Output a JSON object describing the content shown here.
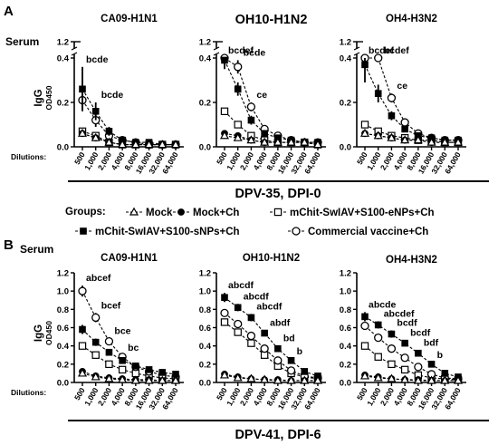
{
  "panel_a": {
    "letter": "A",
    "serum_label": "Serum",
    "section_label": "DPV-35, DPI-0",
    "dilutions_label": "Dilutions:"
  },
  "panel_b": {
    "letter": "B",
    "serum_label": "Serum",
    "section_label": "DPV-41, DPI-6",
    "dilutions_label": "Dilutions:"
  },
  "legend": {
    "title": "Groups:",
    "items": [
      {
        "label": "Mock",
        "marker": "triangle-open",
        "line": "dashed"
      },
      {
        "label": "Mock+Ch",
        "marker": "circle-filled",
        "line": "dashed"
      },
      {
        "label": "mChit-SwIAV+S100-eNPs+Ch",
        "marker": "square-open",
        "line": "dashed"
      },
      {
        "label": "mChit-SwIAV+S100-sNPs+Ch",
        "marker": "square-filled",
        "line": "dashed"
      },
      {
        "label": "Commercial vaccine+Ch",
        "marker": "circle-open",
        "line": "dashed"
      }
    ]
  },
  "colors": {
    "ink": "#000000",
    "background": "#ffffff"
  },
  "chart_data": [
    {
      "type": "line",
      "id": "a1",
      "title": "CA09-H1N1",
      "ylabel": "IgG",
      "ylabel_sub": "OD450",
      "categories": [
        "500",
        "1,000",
        "2,000",
        "4,000",
        "8,000",
        "16,000",
        "32,000",
        "64,000"
      ],
      "yticks": [
        "0.0",
        "0.2",
        "0.4",
        "1.2"
      ],
      "y_axis_break": true,
      "series": [
        {
          "name": "Mock",
          "values": [
            0.06,
            0.04,
            0.02,
            0.01,
            0.01,
            0.01,
            0.01,
            0.01
          ]
        },
        {
          "name": "Mock+Ch",
          "values": [
            0.06,
            0.04,
            0.02,
            0.01,
            0.01,
            0.01,
            0.01,
            0.01
          ]
        },
        {
          "name": "mChit-SwIAV+S100-eNPs+Ch",
          "values": [
            0.07,
            0.05,
            0.02,
            0.01,
            0.01,
            0.01,
            0.01,
            0.01
          ]
        },
        {
          "name": "mChit-SwIAV+S100-sNPs+Ch",
          "values": [
            0.26,
            0.16,
            0.07,
            0.03,
            0.02,
            0.02,
            0.01,
            0.01
          ],
          "errors": [
            0.1,
            0.04,
            0.02,
            0.01,
            0,
            0,
            0,
            0
          ]
        },
        {
          "name": "Commercial vaccine+Ch",
          "values": [
            0.21,
            0.12,
            0.05,
            0.03,
            0.02,
            0.01,
            0.01,
            0.01
          ],
          "errors": [
            0.04,
            0.03,
            0.01,
            0,
            0,
            0,
            0,
            0
          ]
        }
      ],
      "annotations": [
        {
          "text": "bcde",
          "category": 0
        },
        {
          "text": "bcde",
          "category": 1
        }
      ]
    },
    {
      "type": "line",
      "id": "a2",
      "title": "OH10-H1N2",
      "ylabel": "",
      "ylabel_sub": "",
      "categories": [
        "500",
        "1,000",
        "2,000",
        "4,000",
        "8,000",
        "16,000",
        "32,000",
        "64,000"
      ],
      "yticks": [
        "0.0",
        "0.2",
        "0.4",
        "1.2"
      ],
      "y_axis_break": true,
      "series": [
        {
          "name": "Mock",
          "values": [
            0.05,
            0.04,
            0.03,
            0.02,
            0.02,
            0.02,
            0.02,
            0.01
          ]
        },
        {
          "name": "Mock+Ch",
          "values": [
            0.06,
            0.05,
            0.03,
            0.02,
            0.02,
            0.02,
            0.02,
            0.01
          ]
        },
        {
          "name": "mChit-SwIAV+S100-eNPs+Ch",
          "values": [
            0.16,
            0.1,
            0.05,
            0.03,
            0.02,
            0.02,
            0.02,
            0.01
          ]
        },
        {
          "name": "mChit-SwIAV+S100-sNPs+Ch",
          "values": [
            0.39,
            0.26,
            0.12,
            0.06,
            0.04,
            0.03,
            0.02,
            0.02
          ],
          "errors": [
            0.04,
            0.03,
            0.02,
            0.01,
            0,
            0,
            0,
            0
          ]
        },
        {
          "name": "Commercial vaccine+Ch",
          "values": [
            0.58,
            0.36,
            0.18,
            0.08,
            0.05,
            0.03,
            0.02,
            0.02
          ],
          "errors": [
            0.04,
            0.03,
            0.02,
            0.01,
            0,
            0,
            0,
            0
          ]
        }
      ],
      "annotations": [
        {
          "text": "bcdef",
          "category": 0
        },
        {
          "text": "bcde",
          "category": 1
        },
        {
          "text": "ce",
          "category": 2
        }
      ]
    },
    {
      "type": "line",
      "id": "a3",
      "title": "OH4-H3N2",
      "ylabel": "",
      "ylabel_sub": "",
      "categories": [
        "500",
        "1,000",
        "2,000",
        "4,000",
        "8,000",
        "16,000",
        "32,000",
        "64,000"
      ],
      "yticks": [
        "0.0",
        "0.2",
        "0.4",
        "1.2"
      ],
      "y_axis_break": true,
      "series": [
        {
          "name": "Mock",
          "values": [
            0.06,
            0.05,
            0.04,
            0.03,
            0.03,
            0.02,
            0.02,
            0.02
          ]
        },
        {
          "name": "Mock+Ch",
          "values": [
            0.06,
            0.05,
            0.04,
            0.03,
            0.03,
            0.02,
            0.02,
            0.02
          ]
        },
        {
          "name": "mChit-SwIAV+S100-eNPs+Ch",
          "values": [
            0.1,
            0.07,
            0.05,
            0.04,
            0.03,
            0.03,
            0.02,
            0.02
          ]
        },
        {
          "name": "mChit-SwIAV+S100-sNPs+Ch",
          "values": [
            0.37,
            0.24,
            0.14,
            0.08,
            0.05,
            0.04,
            0.03,
            0.03
          ],
          "errors": [
            0.08,
            0.04,
            0.02,
            0.01,
            0,
            0,
            0,
            0
          ]
        },
        {
          "name": "Commercial vaccine+Ch",
          "values": [
            0.68,
            0.44,
            0.22,
            0.11,
            0.06,
            0.04,
            0.03,
            0.03
          ],
          "errors": [
            0.05,
            0.04,
            0.02,
            0.01,
            0,
            0,
            0,
            0
          ]
        }
      ],
      "annotations": [
        {
          "text": "bcdef",
          "category": 0
        },
        {
          "text": "bcdef",
          "category": 1
        },
        {
          "text": "ce",
          "category": 2
        }
      ]
    },
    {
      "type": "line",
      "id": "b1",
      "title": "CA09-H1N1",
      "ylabel": "IgG",
      "ylabel_sub": "OD450",
      "categories": [
        "500",
        "1,000",
        "2,000",
        "4,000",
        "8,000",
        "16,000",
        "32,000",
        "64,000"
      ],
      "yticks": [
        "0.0",
        "0.2",
        "0.4",
        "0.6",
        "0.8",
        "1.0",
        "1.2"
      ],
      "y_axis_break": false,
      "series": [
        {
          "name": "Mock",
          "values": [
            0.1,
            0.06,
            0.04,
            0.03,
            0.02,
            0.02,
            0.02,
            0.02
          ]
        },
        {
          "name": "Mock+Ch",
          "values": [
            0.12,
            0.07,
            0.05,
            0.04,
            0.03,
            0.03,
            0.02,
            0.02
          ]
        },
        {
          "name": "mChit-SwIAV+S100-eNPs+Ch",
          "values": [
            0.4,
            0.3,
            0.2,
            0.14,
            0.1,
            0.07,
            0.05,
            0.04
          ]
        },
        {
          "name": "mChit-SwIAV+S100-sNPs+Ch",
          "values": [
            0.58,
            0.44,
            0.33,
            0.24,
            0.18,
            0.14,
            0.11,
            0.09
          ],
          "errors": [
            0.05,
            0.04,
            0.03,
            0.02,
            0.02,
            0.02,
            0.01,
            0.01
          ]
        },
        {
          "name": "Commercial vaccine+Ch",
          "values": [
            1.0,
            0.71,
            0.45,
            0.28,
            0.17,
            0.12,
            0.08,
            0.06
          ],
          "errors": [
            0.06,
            0.05,
            0.03,
            0.02,
            0.02,
            0.01,
            0.01,
            0.01
          ]
        }
      ],
      "annotations": [
        {
          "text": "abcef",
          "category": 0
        },
        {
          "text": "bcef",
          "category": 1
        },
        {
          "text": "bce",
          "category": 2
        },
        {
          "text": "bc",
          "category": 3
        }
      ]
    },
    {
      "type": "line",
      "id": "b2",
      "title": "OH10-H1N2",
      "ylabel": "",
      "ylabel_sub": "",
      "categories": [
        "500",
        "1,000",
        "2,000",
        "4,000",
        "8,000",
        "16,000",
        "32,000",
        "64,000"
      ],
      "yticks": [
        "0.0",
        "0.2",
        "0.4",
        "0.6",
        "0.8",
        "1.0",
        "1.2"
      ],
      "y_axis_break": false,
      "series": [
        {
          "name": "Mock",
          "values": [
            0.08,
            0.05,
            0.04,
            0.03,
            0.02,
            0.02,
            0.02,
            0.02
          ]
        },
        {
          "name": "Mock+Ch",
          "values": [
            0.09,
            0.06,
            0.04,
            0.03,
            0.03,
            0.02,
            0.02,
            0.02
          ]
        },
        {
          "name": "mChit-SwIAV+S100-eNPs+Ch",
          "values": [
            0.66,
            0.55,
            0.43,
            0.3,
            0.18,
            0.1,
            0.06,
            0.04
          ]
        },
        {
          "name": "mChit-SwIAV+S100-sNPs+Ch",
          "values": [
            0.93,
            0.82,
            0.71,
            0.54,
            0.37,
            0.24,
            0.12,
            0.07
          ],
          "errors": [
            0.05,
            0.04,
            0.04,
            0.03,
            0.03,
            0.02,
            0.01,
            0.01
          ]
        },
        {
          "name": "Commercial vaccine+Ch",
          "values": [
            0.76,
            0.64,
            0.51,
            0.37,
            0.24,
            0.13,
            0.07,
            0.05
          ],
          "errors": [
            0.04,
            0.03,
            0.03,
            0.02,
            0.02,
            0.01,
            0.01,
            0.01
          ]
        }
      ],
      "annotations": [
        {
          "text": "abcdf",
          "category": 0
        },
        {
          "text": "abcdf",
          "category": 1
        },
        {
          "text": "abcdf",
          "category": 2
        },
        {
          "text": "abdf",
          "category": 3
        },
        {
          "text": "bd",
          "category": 4
        },
        {
          "text": "b",
          "category": 5
        }
      ]
    },
    {
      "type": "line",
      "id": "b3",
      "title": "OH4-H3N2",
      "ylabel": "",
      "ylabel_sub": "",
      "categories": [
        "500",
        "1,000",
        "2,000",
        "4,000",
        "8,000",
        "16,000",
        "32,000",
        "64,000"
      ],
      "yticks": [
        "0.0",
        "0.2",
        "0.4",
        "0.6",
        "0.8",
        "1.0",
        "1.2"
      ],
      "y_axis_break": false,
      "series": [
        {
          "name": "Mock",
          "values": [
            0.07,
            0.05,
            0.04,
            0.03,
            0.02,
            0.02,
            0.02,
            0.02
          ]
        },
        {
          "name": "Mock+Ch",
          "values": [
            0.08,
            0.06,
            0.04,
            0.03,
            0.03,
            0.02,
            0.02,
            0.02
          ]
        },
        {
          "name": "mChit-SwIAV+S100-eNPs+Ch",
          "values": [
            0.4,
            0.28,
            0.2,
            0.14,
            0.08,
            0.05,
            0.04,
            0.03
          ]
        },
        {
          "name": "mChit-SwIAV+S100-sNPs+Ch",
          "values": [
            0.72,
            0.63,
            0.53,
            0.43,
            0.32,
            0.2,
            0.1,
            0.06
          ],
          "errors": [
            0.05,
            0.04,
            0.04,
            0.03,
            0.03,
            0.02,
            0.01,
            0.01
          ]
        },
        {
          "name": "Commercial vaccine+Ch",
          "values": [
            0.62,
            0.49,
            0.37,
            0.27,
            0.17,
            0.09,
            0.05,
            0.04
          ],
          "errors": [
            0.04,
            0.03,
            0.03,
            0.02,
            0.02,
            0.01,
            0.01,
            0.01
          ]
        }
      ],
      "annotations": [
        {
          "text": "abcde",
          "category": 0
        },
        {
          "text": "abcdef",
          "category": 1
        },
        {
          "text": "bcdf",
          "category": 2
        },
        {
          "text": "bcdf",
          "category": 3
        },
        {
          "text": "bdf",
          "category": 4
        },
        {
          "text": "b",
          "category": 5
        }
      ]
    }
  ]
}
